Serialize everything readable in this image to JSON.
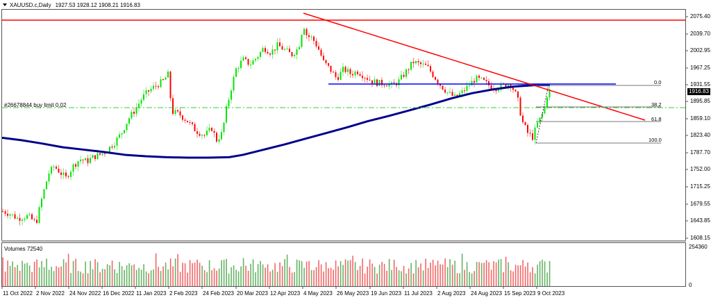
{
  "header": {
    "symbol": "XAUUSD.c,Daily",
    "ohlc": "1927.53 1928.12 1908.21 1916.83"
  },
  "order_label": "#26678844 buy limit 0.02",
  "volume_panel": {
    "label": "Volumes 72540",
    "axis_max": "254360",
    "axis_min": "0"
  },
  "current_price": "1916.83",
  "price_axis": [
    "2075.40",
    "2039.70",
    "2002.95",
    "1967.25",
    "1931.55",
    "1895.85",
    "1859.10",
    "1823.40",
    "1787.70",
    "1752.00",
    "1715.25",
    "1679.55",
    "1643.85",
    "1608.15"
  ],
  "time_axis": [
    "11 Oct 2022",
    "2 Nov 2022",
    "24 Nov 2022",
    "16 Dec 2022",
    "11 Jan 2023",
    "2 Feb 2023",
    "24 Feb 2023",
    "20 Mar 2023",
    "12 Apr 2023",
    "4 May 2023",
    "26 May 2023",
    "19 Jun 2023",
    "11 Jul 2023",
    "2 Aug 2023",
    "24 Aug 2023",
    "15 Sep 2023",
    "9 Oct 2023"
  ],
  "fibonacci": {
    "levels": [
      "0.0",
      "38.2",
      "61.8",
      "100.0"
    ]
  },
  "colors": {
    "bull": "#00e600",
    "bear": "#ff0000",
    "ma": "#00008b",
    "trendline": "#ff0000",
    "resistance": "#ff0000",
    "support": "#0000ff",
    "order_line": "#33cc33",
    "vol_bull": "#339933",
    "vol_bear": "#ee3333"
  },
  "chart_data": {
    "type": "candlestick",
    "title": "XAUUSD.c,Daily",
    "ohlc_last": {
      "open": 1927.53,
      "high": 1928.12,
      "low": 1908.21,
      "close": 1916.83
    },
    "ylim": [
      1608.15,
      2090
    ],
    "x": [
      "11 Oct 2022",
      "2 Nov 2022",
      "24 Nov 2022",
      "16 Dec 2022",
      "11 Jan 2023",
      "2 Feb 2023",
      "24 Feb 2023",
      "20 Mar 2023",
      "12 Apr 2023",
      "4 May 2023",
      "26 May 2023",
      "19 Jun 2023",
      "11 Jul 2023",
      "2 Aug 2023",
      "24 Aug 2023",
      "15 Sep 2023",
      "9 Oct 2023"
    ],
    "approx_close_at_ticks": [
      1665,
      1640,
      1750,
      1790,
      1880,
      1920,
      1815,
      1980,
      2005,
      2050,
      1945,
      1930,
      1935,
      1950,
      1915,
      1915,
      1860
    ],
    "moving_average": {
      "name": "MA (dark blue)",
      "values_at_ticks": [
        1820,
        1808,
        1795,
        1780,
        1776,
        1774,
        1774,
        1778,
        1790,
        1810,
        1835,
        1855,
        1875,
        1900,
        1915,
        1925,
        1932
      ]
    },
    "horizontal_lines": [
      {
        "name": "resistance",
        "price": 2066,
        "color": "#ff0000"
      },
      {
        "name": "support",
        "price": 1935,
        "color": "#0000ff"
      },
      {
        "name": "buy limit order",
        "price": 1888,
        "color": "#33cc33",
        "style": "dash-dot"
      }
    ],
    "trendline": {
      "from": {
        "date": "4 May 2023",
        "price": 2079
      },
      "to": {
        "date": "after 9 Oct 2023",
        "price": 1862
      }
    },
    "fibonacci": {
      "0.0": 1933,
      "38.2": 1888,
      "61.8": 1860,
      "100.0": 1818
    },
    "volume": {
      "label": "Volumes 72540",
      "max": 254360,
      "last": 72540
    },
    "xlabel": "",
    "ylabel": ""
  }
}
